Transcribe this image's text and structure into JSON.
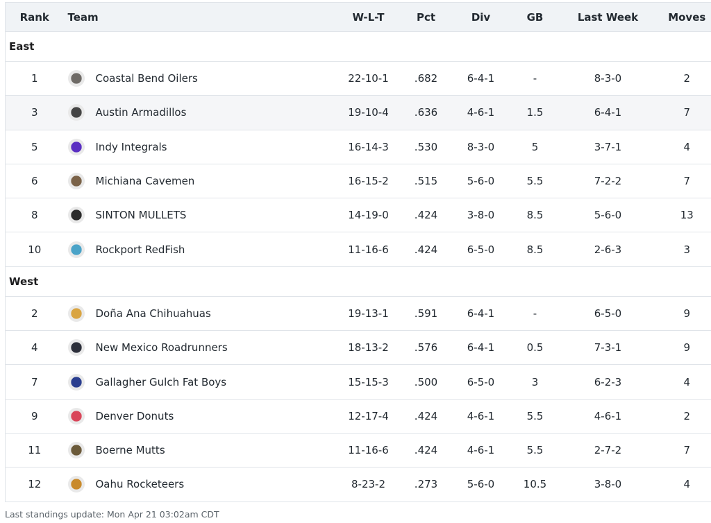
{
  "columns": {
    "rank": "Rank",
    "team": "Team",
    "wlt": "W-L-T",
    "pct": "Pct",
    "div": "Div",
    "gb": "GB",
    "last_week": "Last Week",
    "moves": "Moves"
  },
  "groups": [
    {
      "name": "East",
      "teams": [
        {
          "rank": "1",
          "name": "Coastal Bend Oilers",
          "wlt": "22-10-1",
          "pct": ".682",
          "div": "6-4-1",
          "gb": "-",
          "last_week": "8-3-0",
          "moves": "2",
          "logo": "oil-derrick-logo",
          "logo_color": "#6e6a66"
        },
        {
          "rank": "3",
          "name": "Austin Armadillos",
          "wlt": "19-10-4",
          "pct": ".636",
          "div": "4-6-1",
          "gb": "1.5",
          "last_week": "6-4-1",
          "moves": "7",
          "logo": "armadillo-logo",
          "logo_color": "#444444"
        },
        {
          "rank": "5",
          "name": "Indy Integrals",
          "wlt": "16-14-3",
          "pct": ".530",
          "div": "8-3-0",
          "gb": "5",
          "last_week": "3-7-1",
          "moves": "4",
          "logo": "integral-logo",
          "logo_color": "#5a2fc2"
        },
        {
          "rank": "6",
          "name": "Michiana Cavemen",
          "wlt": "16-15-2",
          "pct": ".515",
          "div": "5-6-0",
          "gb": "5.5",
          "last_week": "7-2-2",
          "moves": "7",
          "logo": "caveman-logo",
          "logo_color": "#7a6248"
        },
        {
          "rank": "8",
          "name": "SINTON MULLETS",
          "wlt": "14-19-0",
          "pct": ".424",
          "div": "3-8-0",
          "gb": "8.5",
          "last_week": "5-6-0",
          "moves": "13",
          "logo": "mullet-logo",
          "logo_color": "#2a2a2a"
        },
        {
          "rank": "10",
          "name": "Rockport RedFish",
          "wlt": "11-16-6",
          "pct": ".424",
          "div": "6-5-0",
          "gb": "8.5",
          "last_week": "2-6-3",
          "moves": "3",
          "logo": "redfish-logo",
          "logo_color": "#4aa3c8"
        }
      ]
    },
    {
      "name": "West",
      "teams": [
        {
          "rank": "2",
          "name": "Doña Ana Chihuahuas",
          "wlt": "19-13-1",
          "pct": ".591",
          "div": "6-4-1",
          "gb": "-",
          "last_week": "6-5-0",
          "moves": "9",
          "logo": "chihuahua-logo",
          "logo_color": "#d9a441"
        },
        {
          "rank": "4",
          "name": "New Mexico Roadrunners",
          "wlt": "18-13-2",
          "pct": ".576",
          "div": "6-4-1",
          "gb": "0.5",
          "last_week": "7-3-1",
          "moves": "9",
          "logo": "roadrunner-logo",
          "logo_color": "#2c2f3a"
        },
        {
          "rank": "7",
          "name": "Gallagher Gulch Fat Boys",
          "wlt": "15-15-3",
          "pct": ".500",
          "div": "6-5-0",
          "gb": "3",
          "last_week": "6-2-3",
          "moves": "4",
          "logo": "fat-boy-logo",
          "logo_color": "#2a3e8f"
        },
        {
          "rank": "9",
          "name": "Denver Donuts",
          "wlt": "12-17-4",
          "pct": ".424",
          "div": "4-6-1",
          "gb": "5.5",
          "last_week": "4-6-1",
          "moves": "2",
          "logo": "donut-logo",
          "logo_color": "#d9465a"
        },
        {
          "rank": "11",
          "name": "Boerne Mutts",
          "wlt": "11-16-6",
          "pct": ".424",
          "div": "4-6-1",
          "gb": "5.5",
          "last_week": "2-7-2",
          "moves": "7",
          "logo": "mutts-logo",
          "logo_color": "#6b5a3a"
        },
        {
          "rank": "12",
          "name": "Oahu Rocketeers",
          "wlt": "8-23-2",
          "pct": ".273",
          "div": "5-6-0",
          "gb": "10.5",
          "last_week": "3-8-0",
          "moves": "4",
          "logo": "rocket-logo",
          "logo_color": "#c98a2b"
        }
      ]
    }
  ],
  "footer": {
    "last_update": "Last standings update: Mon Apr 21 03:02am CDT"
  }
}
